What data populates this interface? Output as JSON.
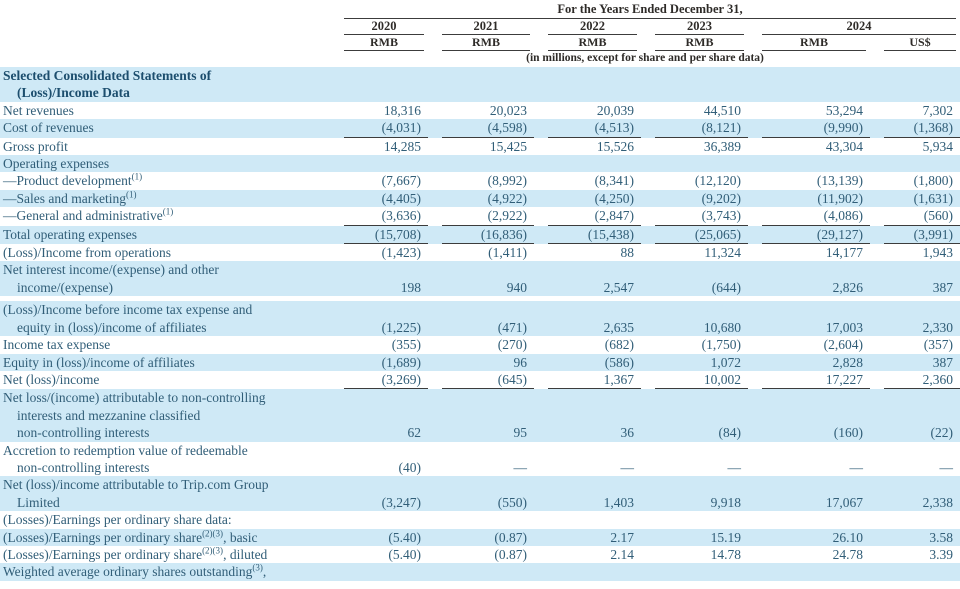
{
  "colors": {
    "stripe_blue": "#cfe9f6",
    "body_text": "#315e78",
    "section_heading_text": "#1c4e6e",
    "header_text": "#2e2b28",
    "rule_line": "#3c3c3c"
  },
  "header": {
    "title": "For the Years Ended December 31,",
    "years": [
      "2020",
      "2021",
      "2022",
      "2023",
      "2024"
    ],
    "currencies": [
      "RMB",
      "RMB",
      "RMB",
      "RMB",
      "RMB",
      "US$"
    ],
    "note": "(in millions, except for share and per share data)"
  },
  "table": {
    "section_heading": "Selected Consolidated Statements of (Loss)/Income Data",
    "rows": [
      {
        "bg": "blue",
        "bold": true,
        "lines": [
          "Selected Consolidated Statements of",
          "(Loss)/Income Data"
        ],
        "values": [
          "",
          "",
          "",
          "",
          "",
          ""
        ]
      },
      {
        "bg": "white",
        "lines": [
          "Net revenues"
        ],
        "values": [
          "18,316",
          "20,023",
          "20,039",
          "44,510",
          "53,294",
          "7,302"
        ]
      },
      {
        "bg": "blue",
        "underline": true,
        "lines": [
          "Cost of revenues"
        ],
        "values": [
          "(4,031)",
          "(4,598)",
          "(4,513)",
          "(8,121)",
          "(9,990)",
          "(1,368)"
        ]
      },
      {
        "bg": "white",
        "lines": [
          "Gross profit"
        ],
        "values": [
          "14,285",
          "15,425",
          "15,526",
          "36,389",
          "43,304",
          "5,934"
        ]
      },
      {
        "bg": "blue",
        "lines": [
          "Operating expenses"
        ],
        "values": [
          "",
          "",
          "",
          "",
          "",
          ""
        ]
      },
      {
        "bg": "white",
        "lines": [
          "—Product development⟦(1)⟧"
        ],
        "values": [
          "(7,667)",
          "(8,992)",
          "(8,341)",
          "(12,120)",
          "(13,139)",
          "(1,800)"
        ]
      },
      {
        "bg": "blue",
        "lines": [
          "—Sales and marketing⟦(1)⟧"
        ],
        "values": [
          "(4,405)",
          "(4,922)",
          "(4,250)",
          "(9,202)",
          "(11,902)",
          "(1,631)"
        ]
      },
      {
        "bg": "white",
        "underline": true,
        "lines": [
          "—General and administrative⟦(1)⟧"
        ],
        "values": [
          "(3,636)",
          "(2,922)",
          "(2,847)",
          "(3,743)",
          "(4,086)",
          "(560)"
        ]
      },
      {
        "bg": "blue",
        "underline": true,
        "lines": [
          "Total operating expenses"
        ],
        "values": [
          "(15,708)",
          "(16,836)",
          "(15,438)",
          "(25,065)",
          "(29,127)",
          "(3,991)"
        ]
      },
      {
        "bg": "white",
        "lines": [
          "(Loss)/Income from operations"
        ],
        "values": [
          "(1,423)",
          "(1,411)",
          "88",
          "11,324",
          "14,177",
          "1,943"
        ]
      },
      {
        "bg": "blue",
        "lines": [
          "Net interest income/(expense) and other",
          "income/(expense)"
        ],
        "values": [
          "198",
          "940",
          "2,547",
          "(644)",
          "2,826",
          "387"
        ]
      },
      {
        "bg": "blue",
        "gap_before": true,
        "lines": [
          "(Loss)/Income before income tax expense and",
          "equity in (loss)/income of affiliates"
        ],
        "values": [
          "(1,225)",
          "(471)",
          "2,635",
          "10,680",
          "17,003",
          "2,330"
        ]
      },
      {
        "bg": "white",
        "lines": [
          "Income tax expense"
        ],
        "values": [
          "(355)",
          "(270)",
          "(682)",
          "(1,750)",
          "(2,604)",
          "(357)"
        ]
      },
      {
        "bg": "blue",
        "lines": [
          "Equity in (loss)/income of affiliates"
        ],
        "values": [
          "(1,689)",
          "96",
          "(586)",
          "1,072",
          "2,828",
          "387"
        ]
      },
      {
        "bg": "white",
        "underline": true,
        "lines": [
          "Net (loss)/income"
        ],
        "values": [
          "(3,269)",
          "(645)",
          "1,367",
          "10,002",
          "17,227",
          "2,360"
        ]
      },
      {
        "bg": "blue",
        "lines": [
          "Net loss/(income) attributable to non-controlling",
          "interests and mezzanine classified",
          "non-controlling interests"
        ],
        "values": [
          "62",
          "95",
          "36",
          "(84)",
          "(160)",
          "(22)"
        ]
      },
      {
        "bg": "white",
        "lines": [
          "Accretion to redemption value of redeemable",
          "non-controlling interests"
        ],
        "values": [
          "(40)",
          "—",
          "—",
          "—",
          "—",
          "—"
        ]
      },
      {
        "bg": "blue",
        "lines": [
          "Net (loss)/income attributable to Trip.com Group",
          "Limited"
        ],
        "values": [
          "(3,247)",
          "(550)",
          "1,403",
          "9,918",
          "17,067",
          "2,338"
        ]
      },
      {
        "bg": "white",
        "lines": [
          "(Losses)/Earnings per ordinary share data:"
        ],
        "values": [
          "",
          "",
          "",
          "",
          "",
          ""
        ]
      },
      {
        "bg": "blue",
        "lines": [
          "(Losses)/Earnings per ordinary share⟦(2)(3)⟧, basic"
        ],
        "values": [
          "(5.40)",
          "(0.87)",
          "2.17",
          "15.19",
          "26.10",
          "3.58"
        ]
      },
      {
        "bg": "white",
        "lines": [
          "(Losses)/Earnings per ordinary share⟦(2)(3)⟧, diluted"
        ],
        "values": [
          "(5.40)",
          "(0.87)",
          "2.14",
          "14.78",
          "24.78",
          "3.39"
        ]
      },
      {
        "bg": "blue",
        "lines": [
          "Weighted average ordinary shares outstanding⟦(3)⟧,"
        ],
        "values": [
          "",
          "",
          "",
          "",
          "",
          ""
        ]
      }
    ]
  }
}
